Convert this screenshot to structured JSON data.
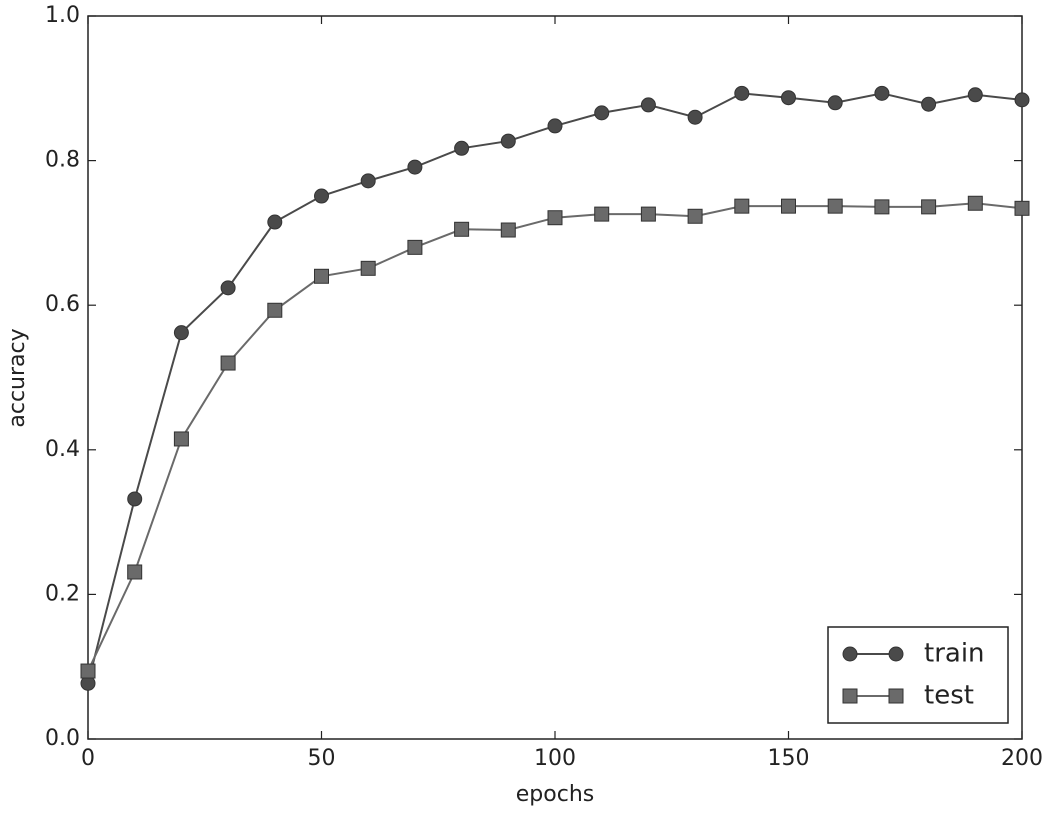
{
  "chart_data": {
    "type": "line",
    "x_label": "epochs",
    "y_label": "accuracy",
    "x": [
      0,
      10,
      20,
      30,
      40,
      50,
      60,
      70,
      80,
      90,
      100,
      110,
      120,
      130,
      140,
      150,
      160,
      170,
      180,
      190,
      200
    ],
    "series": [
      {
        "name": "train",
        "color": "#4a4a4a",
        "marker": "circle",
        "values": [
          0.077,
          0.332,
          0.562,
          0.624,
          0.715,
          0.751,
          0.772,
          0.791,
          0.817,
          0.827,
          0.848,
          0.866,
          0.877,
          0.86,
          0.893,
          0.887,
          0.88,
          0.893,
          0.878,
          0.891,
          0.884
        ]
      },
      {
        "name": "test",
        "color": "#6a6a6a",
        "marker": "square",
        "values": [
          0.094,
          0.231,
          0.415,
          0.52,
          0.593,
          0.64,
          0.651,
          0.68,
          0.705,
          0.704,
          0.721,
          0.726,
          0.726,
          0.723,
          0.737,
          0.737,
          0.737,
          0.736,
          0.736,
          0.741,
          0.734
        ]
      }
    ],
    "xlim": [
      0,
      200
    ],
    "xticks": [
      0,
      50,
      100,
      150,
      200
    ],
    "ylim": [
      0,
      1
    ],
    "yticks": [
      {
        "value": 0,
        "label": "0.0"
      },
      0.2,
      0.4,
      0.6,
      0.8,
      {
        "value": 1,
        "label": "1.0"
      }
    ],
    "grid": false,
    "legend": "lower right"
  }
}
